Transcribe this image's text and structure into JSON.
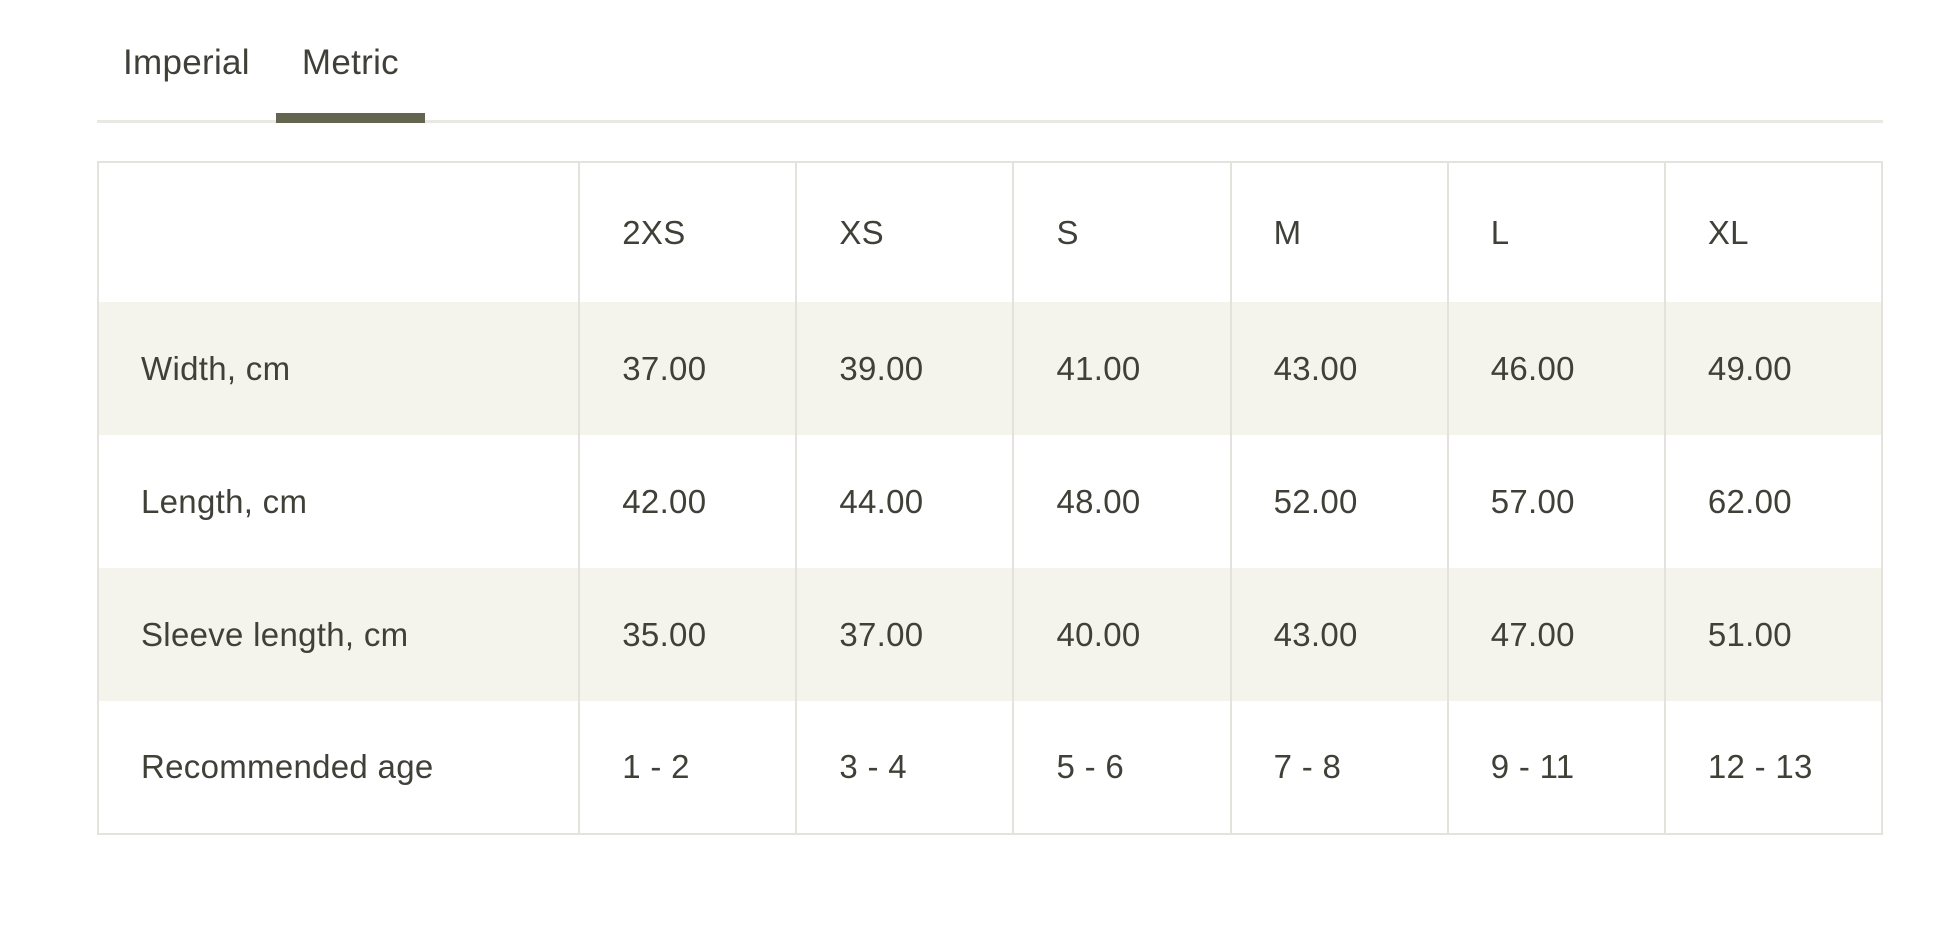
{
  "tabs": [
    {
      "label": "Imperial",
      "active": false
    },
    {
      "label": "Metric",
      "active": true
    }
  ],
  "table": {
    "corner": "",
    "columns": [
      "2XS",
      "XS",
      "S",
      "M",
      "L",
      "XL"
    ],
    "rows": [
      {
        "label": "Width, cm",
        "values": [
          "37.00",
          "39.00",
          "41.00",
          "43.00",
          "46.00",
          "49.00"
        ]
      },
      {
        "label": "Length, cm",
        "values": [
          "42.00",
          "44.00",
          "48.00",
          "52.00",
          "57.00",
          "62.00"
        ]
      },
      {
        "label": "Sleeve length, cm",
        "values": [
          "35.00",
          "37.00",
          "40.00",
          "43.00",
          "47.00",
          "51.00"
        ]
      },
      {
        "label": "Recommended age",
        "values": [
          "1 - 2",
          "3 - 4",
          "5 - 6",
          "7 - 8",
          "9 - 11",
          "12 - 13"
        ]
      }
    ]
  },
  "colors": {
    "text": "#3f4037",
    "active_tab_underline": "#63654f",
    "tab_divider": "#e9e8e2",
    "table_border": "#e3e2dc",
    "shaded_row_background": "#f4f3ec",
    "page_background": "#ffffff"
  }
}
